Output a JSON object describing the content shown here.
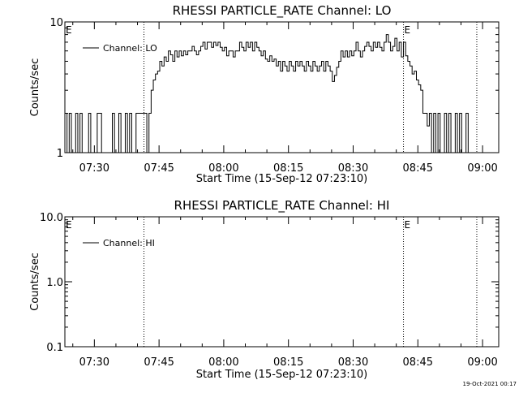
{
  "footer": {
    "timestamp": "19-Oct-2021 00:17"
  },
  "chart_data": [
    {
      "type": "line",
      "title": "RHESSI PARTICLE_RATE Channel: LO",
      "xlabel": "Start Time (15-Sep-12 07:23:10)",
      "ylabel": "Counts/sec",
      "yscale": "log",
      "ylim": [
        1,
        10
      ],
      "xlim": [
        "07:23:10",
        "09:03:45"
      ],
      "xticks": [
        "07:30",
        "07:45",
        "08:00",
        "08:15",
        "08:30",
        "08:45",
        "09:00"
      ],
      "yticks": [
        "1",
        "10"
      ],
      "legend": {
        "position": "top-left",
        "entry": "Channel: LO"
      },
      "event_lines": [
        "07:41:30",
        "08:41:40",
        "08:58:40"
      ],
      "event_labels": [
        {
          "text": "E",
          "at": "07:23:10"
        },
        {
          "text": "E",
          "at": "08:41:40"
        }
      ],
      "series": [
        {
          "name": "Channel: LO",
          "x_start": "07:23:10",
          "x_step_seconds": 30,
          "values": [
            2,
            1,
            2,
            1,
            1,
            2,
            1,
            2,
            1,
            1,
            1,
            2,
            1,
            1,
            1,
            2,
            2,
            1,
            1,
            1,
            1,
            1,
            2,
            1,
            1,
            2,
            1,
            1,
            2,
            1,
            2,
            1,
            1,
            2,
            2,
            2,
            2,
            2,
            1,
            2,
            3,
            3.6,
            4,
            4.2,
            5,
            4.6,
            5.4,
            5,
            6,
            5.6,
            5,
            6,
            5.4,
            6,
            5.5,
            6,
            5.6,
            6,
            6,
            6.5,
            6,
            5.6,
            6,
            6.5,
            7,
            6.2,
            7,
            7,
            6.4,
            7,
            6.6,
            7,
            6.4,
            6,
            6.4,
            5.5,
            6,
            6,
            5.4,
            6,
            6,
            7,
            6.4,
            6,
            7,
            6.4,
            7,
            6,
            7,
            6.4,
            6,
            5.5,
            6,
            5.2,
            5,
            5.5,
            5,
            5.2,
            4.6,
            5,
            4.2,
            5,
            4.6,
            4.2,
            5,
            4.6,
            4.2,
            5,
            4.6,
            5,
            4.6,
            4.2,
            5,
            4.6,
            4.2,
            5,
            4.6,
            4.2,
            4.6,
            5,
            4.2,
            5,
            4.6,
            4.2,
            3.5,
            3.9,
            4.5,
            5,
            6,
            5.4,
            6,
            5.4,
            6,
            5.5,
            6,
            7,
            6,
            5.4,
            6,
            6.5,
            7,
            6.5,
            6,
            7,
            6.4,
            7,
            6.4,
            6,
            7,
            8,
            7,
            6,
            6.5,
            7.5,
            6,
            7,
            5.4,
            7,
            5.5,
            5,
            4.6,
            4,
            4.2,
            3.6,
            3.3,
            3,
            2,
            2,
            1.6,
            2,
            1,
            2,
            1,
            2,
            1,
            1,
            2,
            1,
            2,
            1,
            1,
            2,
            1,
            2,
            1,
            1,
            2,
            1
          ]
        }
      ]
    },
    {
      "type": "line",
      "title": "RHESSI PARTICLE_RATE Channel: HI",
      "xlabel": "Start Time (15-Sep-12 07:23:10)",
      "ylabel": "Counts/sec",
      "yscale": "log",
      "ylim": [
        0.1,
        10
      ],
      "xlim": [
        "07:23:10",
        "09:03:45"
      ],
      "xticks": [
        "07:30",
        "07:45",
        "08:00",
        "08:15",
        "08:30",
        "08:45",
        "09:00"
      ],
      "yticks": [
        "0.1",
        "1.0",
        "10.0"
      ],
      "legend": {
        "position": "top-left",
        "entry": "Channel: HI"
      },
      "event_lines": [
        "07:41:30",
        "08:41:40",
        "08:58:40"
      ],
      "event_labels": [
        {
          "text": "E",
          "at": "07:23:10"
        },
        {
          "text": "E",
          "at": "08:41:40"
        }
      ],
      "series": [
        {
          "name": "Channel: HI",
          "values": []
        }
      ]
    }
  ]
}
